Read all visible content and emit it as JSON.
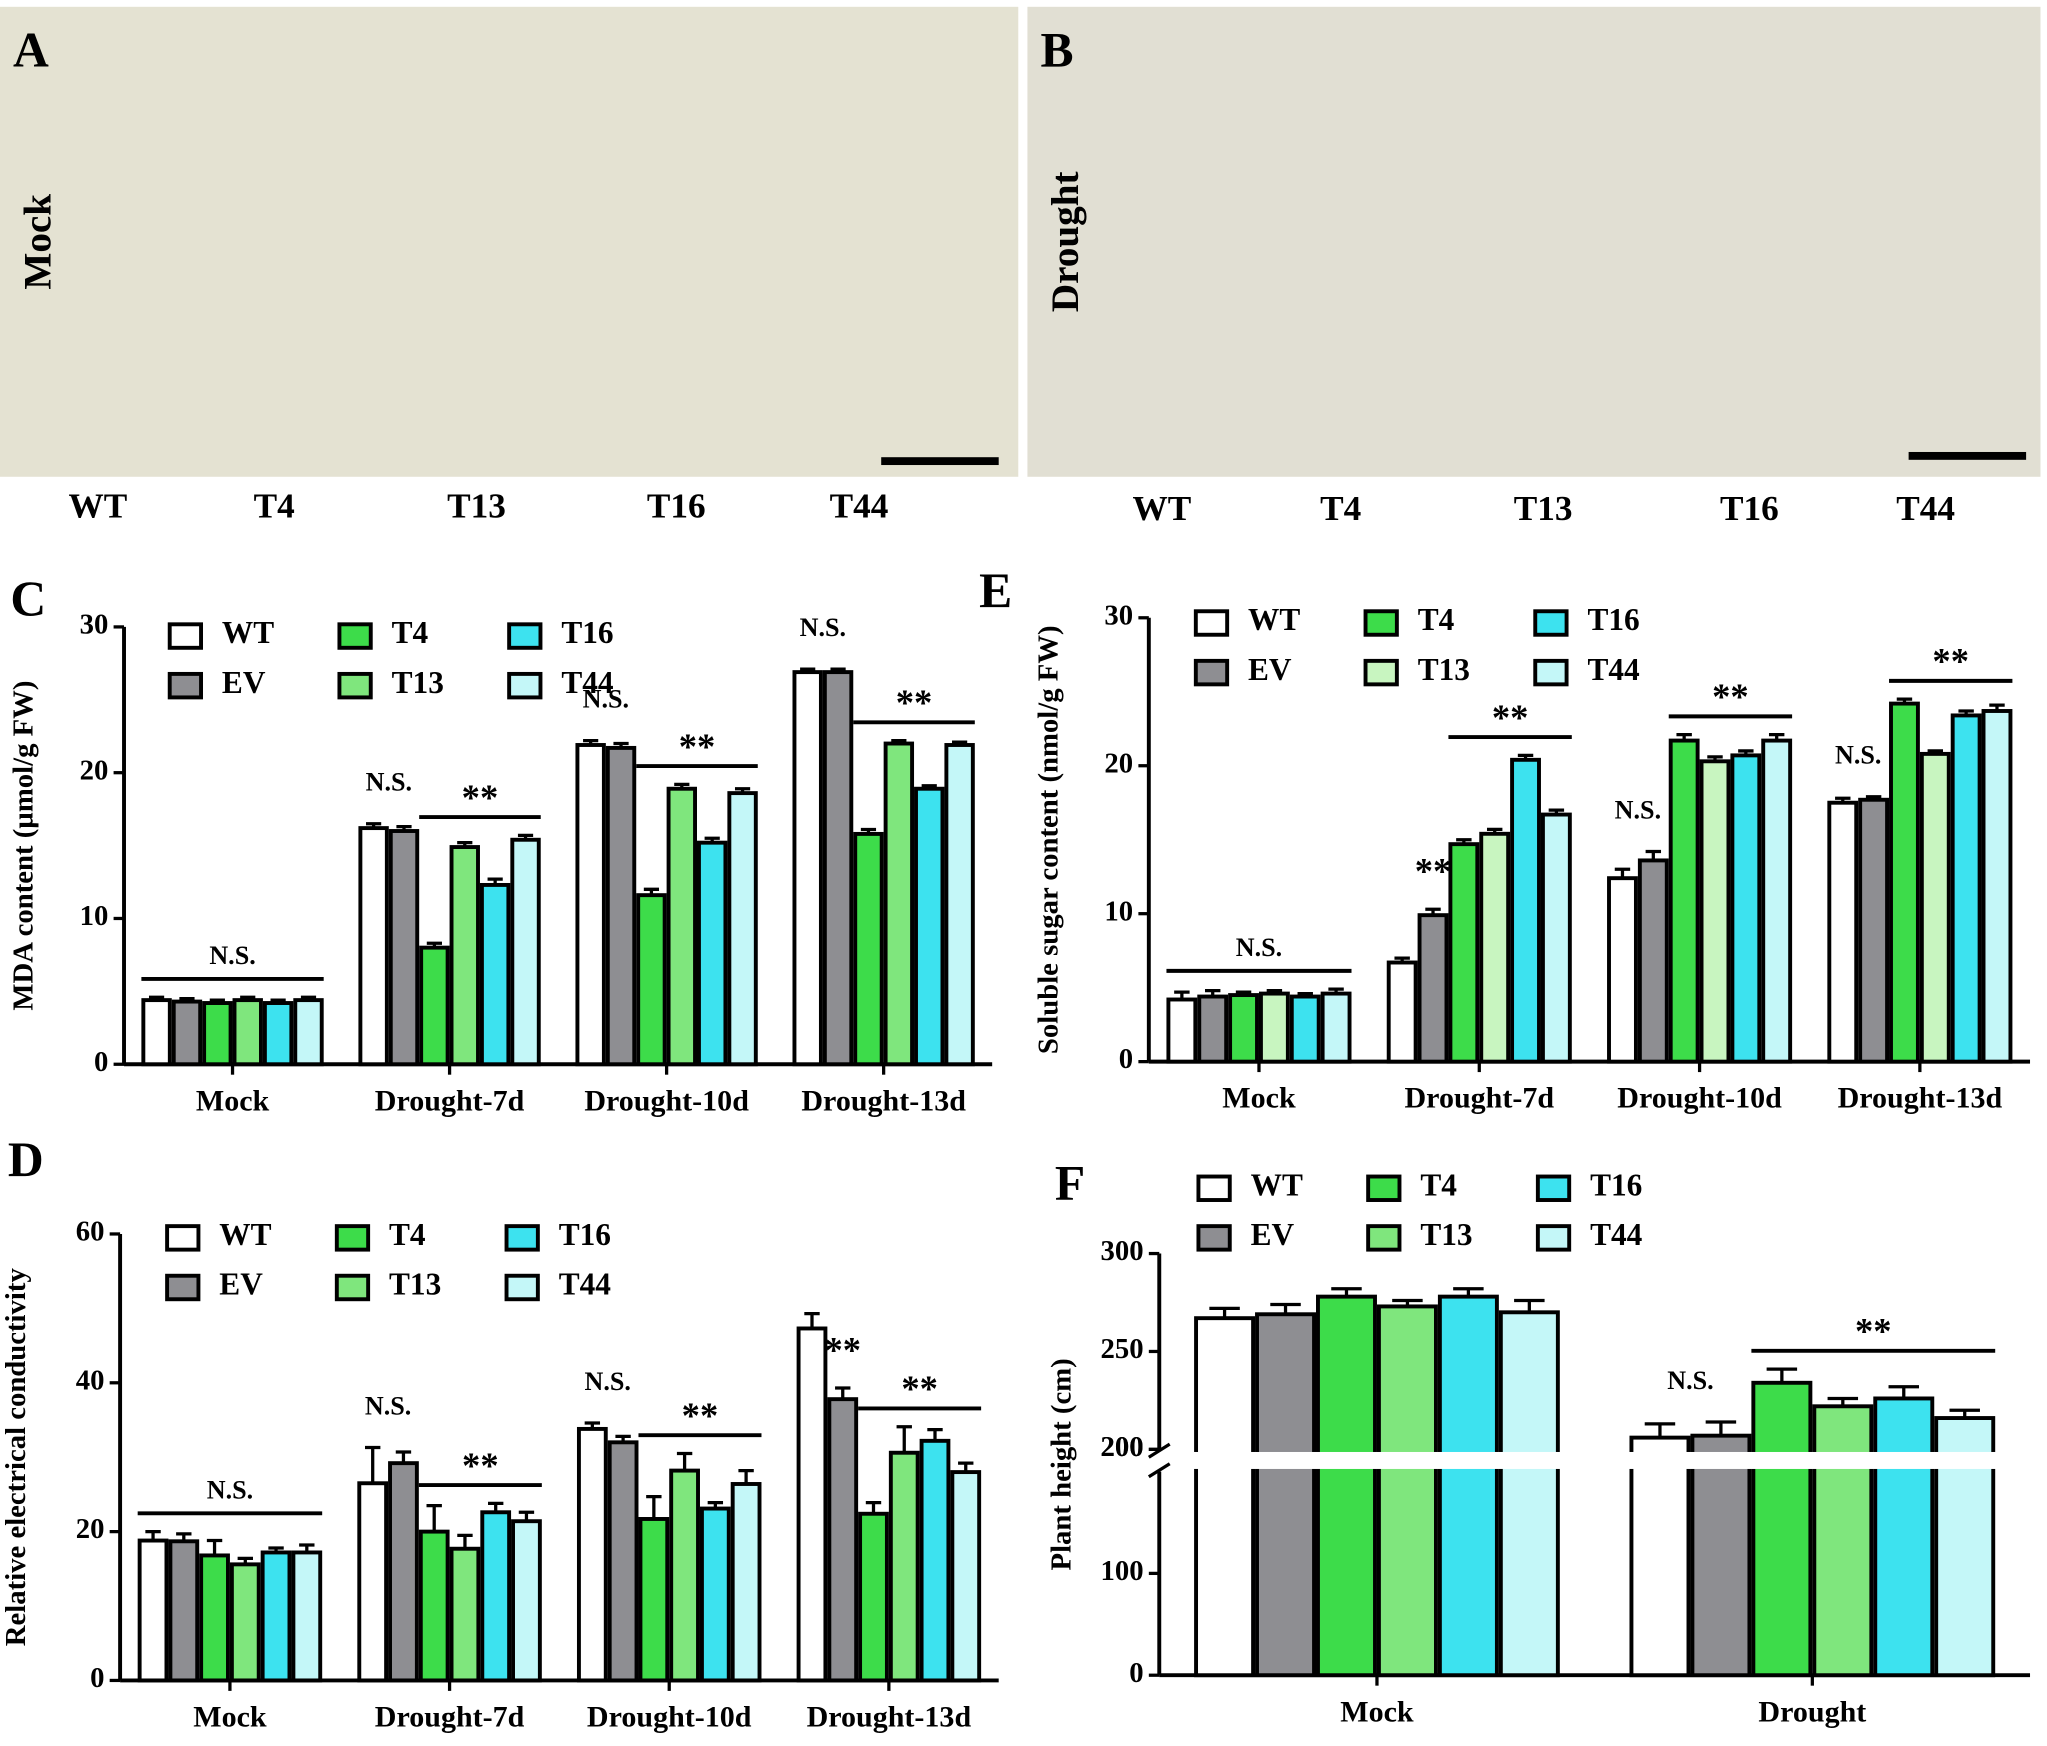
{
  "photos": [
    {
      "letter": "A",
      "condition": "Mock",
      "labels": [
        "WT",
        "T4",
        "T13",
        "T16",
        "T44"
      ]
    },
    {
      "letter": "B",
      "condition": "Drought",
      "labels": [
        "WT",
        "T4",
        "T13",
        "T16",
        "T44"
      ]
    }
  ],
  "chart_data": [
    {
      "type": "bar",
      "panel": "C",
      "ylabel": "MDA content (µmol/g FW)",
      "categories": [
        "Mock",
        "Drought-7d",
        "Drought-10d",
        "Drought-13d"
      ],
      "ylim": [
        0,
        30
      ],
      "yticks": [
        0,
        10,
        20,
        30
      ],
      "series": [
        {
          "name": "WT",
          "color": "#ffffff",
          "values": [
            4.4,
            16.2,
            21.9,
            26.9
          ],
          "errors": [
            0.2,
            0.3,
            0.3,
            0.2
          ]
        },
        {
          "name": "EV",
          "color": "#8e8e92",
          "values": [
            4.3,
            16.0,
            21.7,
            26.9
          ],
          "errors": [
            0.2,
            0.3,
            0.3,
            0.2
          ]
        },
        {
          "name": "T4",
          "color": "#3ddc4a",
          "values": [
            4.2,
            8.0,
            11.6,
            15.8
          ],
          "errors": [
            0.2,
            0.3,
            0.4,
            0.3
          ]
        },
        {
          "name": "T13",
          "color": "#7fe67d",
          "values": [
            4.4,
            14.9,
            18.9,
            22.0
          ],
          "errors": [
            0.2,
            0.3,
            0.3,
            0.2
          ]
        },
        {
          "name": "T16",
          "color": "#3de2ef",
          "values": [
            4.2,
            12.3,
            15.2,
            18.9
          ],
          "errors": [
            0.2,
            0.4,
            0.3,
            0.2
          ]
        },
        {
          "name": "T44",
          "color": "#c4f7f8",
          "values": [
            4.4,
            15.4,
            18.6,
            21.9
          ],
          "errors": [
            0.2,
            0.3,
            0.3,
            0.2
          ]
        }
      ],
      "annotations": [
        {
          "text": "N.S.",
          "category": 0,
          "from": "WT",
          "to": "T44",
          "line": true
        },
        {
          "text": "N.S.",
          "category": 1,
          "from": "WT",
          "to": "EV",
          "line": false
        },
        {
          "text": "**",
          "category": 1,
          "from": "T4",
          "to": "T44",
          "line": true
        },
        {
          "text": "N.S.",
          "category": 2,
          "from": "WT",
          "to": "EV",
          "line": false
        },
        {
          "text": "**",
          "category": 2,
          "from": "T4",
          "to": "T44",
          "line": true
        },
        {
          "text": "N.S.",
          "category": 3,
          "from": "WT",
          "to": "EV",
          "line": false
        },
        {
          "text": "**",
          "category": 3,
          "from": "T4",
          "to": "T44",
          "line": true
        }
      ]
    },
    {
      "type": "bar",
      "panel": "D",
      "ylabel": "Relative electrical conductivity",
      "categories": [
        "Mock",
        "Drought-7d",
        "Drought-10d",
        "Drought-13d"
      ],
      "ylim": [
        0,
        60
      ],
      "yticks": [
        0,
        20,
        40,
        60
      ],
      "series": [
        {
          "name": "WT",
          "color": "#ffffff",
          "values": [
            18.8,
            26.5,
            33.8,
            47.3
          ],
          "errors": [
            1.2,
            4.8,
            0.8,
            2.0
          ]
        },
        {
          "name": "EV",
          "color": "#8e8e92",
          "values": [
            18.7,
            29.2,
            32.0,
            37.8
          ],
          "errors": [
            1.0,
            1.5,
            0.8,
            1.5
          ]
        },
        {
          "name": "T4",
          "color": "#3ddc4a",
          "values": [
            16.8,
            20.0,
            21.7,
            22.4
          ],
          "errors": [
            2.0,
            3.5,
            3.0,
            1.5
          ]
        },
        {
          "name": "T13",
          "color": "#7fe67d",
          "values": [
            15.6,
            17.7,
            28.2,
            30.6
          ],
          "errors": [
            0.8,
            1.8,
            2.3,
            3.5
          ]
        },
        {
          "name": "T16",
          "color": "#3de2ef",
          "values": [
            17.2,
            22.6,
            23.1,
            32.2
          ],
          "errors": [
            0.6,
            1.2,
            0.8,
            1.5
          ]
        },
        {
          "name": "T44",
          "color": "#c4f7f8",
          "values": [
            17.2,
            21.4,
            26.4,
            28.0
          ],
          "errors": [
            1.0,
            1.2,
            1.8,
            1.2
          ]
        }
      ],
      "annotations": [
        {
          "text": "N.S.",
          "category": 0,
          "from": "WT",
          "to": "T44",
          "line": true
        },
        {
          "text": "N.S.",
          "category": 1,
          "from": "WT",
          "to": "EV",
          "line": false
        },
        {
          "text": "**",
          "category": 1,
          "from": "T4",
          "to": "T44",
          "line": true
        },
        {
          "text": "N.S.",
          "category": 2,
          "from": "WT",
          "to": "EV",
          "line": false
        },
        {
          "text": "**",
          "category": 2,
          "from": "T4",
          "to": "T44",
          "line": true
        },
        {
          "text": "**",
          "category": 3,
          "from": "EV",
          "to": "EV",
          "line": false
        },
        {
          "text": "**",
          "category": 3,
          "from": "T4",
          "to": "T44",
          "line": true
        }
      ]
    },
    {
      "type": "bar",
      "panel": "E",
      "ylabel": "Soluble sugar content (nmol/g FW)",
      "categories": [
        "Mock",
        "Drought-7d",
        "Drought-10d",
        "Drought-13d"
      ],
      "ylim": [
        0,
        30
      ],
      "yticks": [
        0,
        10,
        20,
        30
      ],
      "series": [
        {
          "name": "WT",
          "color": "#ffffff",
          "values": [
            4.2,
            6.7,
            12.4,
            17.5
          ],
          "errors": [
            0.5,
            0.3,
            0.6,
            0.3
          ]
        },
        {
          "name": "EV",
          "color": "#8e8e92",
          "values": [
            4.4,
            9.9,
            13.6,
            17.7
          ],
          "errors": [
            0.4,
            0.4,
            0.6,
            0.2
          ]
        },
        {
          "name": "T4",
          "color": "#3ddc4a",
          "values": [
            4.5,
            14.7,
            21.7,
            24.2
          ],
          "errors": [
            0.2,
            0.3,
            0.4,
            0.3
          ]
        },
        {
          "name": "T13",
          "color": "#c8f5c0",
          "values": [
            4.6,
            15.4,
            20.3,
            20.8
          ],
          "errors": [
            0.2,
            0.3,
            0.3,
            0.2
          ]
        },
        {
          "name": "T16",
          "color": "#3de2ef",
          "values": [
            4.4,
            20.4,
            20.7,
            23.4
          ],
          "errors": [
            0.2,
            0.3,
            0.3,
            0.3
          ]
        },
        {
          "name": "T44",
          "color": "#c4f7f8",
          "values": [
            4.6,
            16.7,
            21.7,
            23.7
          ],
          "errors": [
            0.3,
            0.3,
            0.4,
            0.4
          ]
        }
      ],
      "annotations": [
        {
          "text": "N.S.",
          "category": 0,
          "from": "WT",
          "to": "T44",
          "line": true
        },
        {
          "text": "**",
          "category": 1,
          "from": "EV",
          "to": "EV",
          "line": false
        },
        {
          "text": "**",
          "category": 1,
          "from": "T4",
          "to": "T44",
          "line": true
        },
        {
          "text": "N.S.",
          "category": 2,
          "from": "WT",
          "to": "EV",
          "line": false
        },
        {
          "text": "**",
          "category": 2,
          "from": "T4",
          "to": "T44",
          "line": true
        },
        {
          "text": "N.S.",
          "category": 3,
          "from": "WT",
          "to": "EV",
          "line": false
        },
        {
          "text": "**",
          "category": 3,
          "from": "T4",
          "to": "T44",
          "line": true
        }
      ]
    },
    {
      "type": "bar",
      "panel": "F",
      "ylabel": "Plant height (cm)",
      "categories": [
        "Mock",
        "Drought"
      ],
      "segments": [
        {
          "ylim": [
            0,
            200
          ],
          "yticks": [
            0,
            100,
            200
          ]
        },
        {
          "ylim": [
            200,
            300
          ],
          "yticks": [
            200,
            250,
            300
          ]
        }
      ],
      "series": [
        {
          "name": "WT",
          "color": "#ffffff",
          "values": [
            267,
            206
          ],
          "errors": [
            5,
            7
          ]
        },
        {
          "name": "EV",
          "color": "#8e8e92",
          "values": [
            269,
            207
          ],
          "errors": [
            5,
            7
          ]
        },
        {
          "name": "T4",
          "color": "#3ddc4a",
          "values": [
            278,
            234
          ],
          "errors": [
            4,
            7
          ]
        },
        {
          "name": "T13",
          "color": "#7fe67d",
          "values": [
            273,
            222
          ],
          "errors": [
            3,
            4
          ]
        },
        {
          "name": "T16",
          "color": "#3de2ef",
          "values": [
            278,
            226
          ],
          "errors": [
            4,
            6
          ]
        },
        {
          "name": "T44",
          "color": "#c4f7f8",
          "values": [
            270,
            216
          ],
          "errors": [
            6,
            4
          ]
        }
      ],
      "annotations": [
        {
          "text": "N.S.",
          "category": 1,
          "from": "WT",
          "to": "EV",
          "line": false
        },
        {
          "text": "**",
          "category": 1,
          "from": "T4",
          "to": "T44",
          "line": true
        }
      ]
    }
  ]
}
